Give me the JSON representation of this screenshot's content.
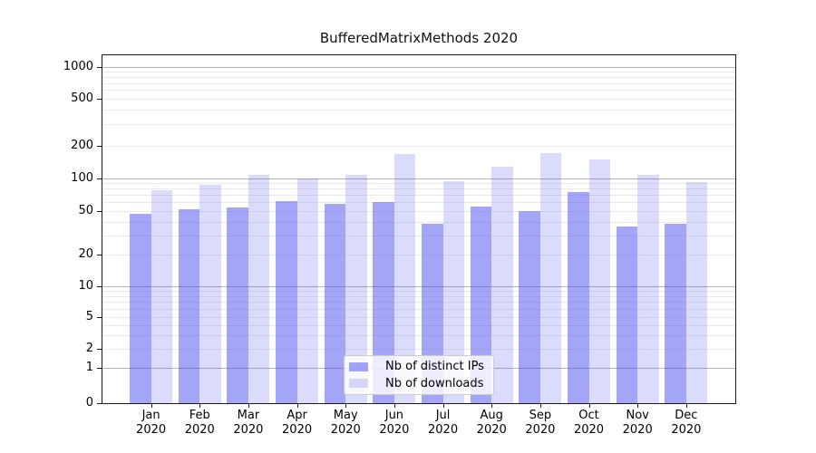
{
  "chart_data": {
    "type": "bar",
    "title": "BufferedMatrixMethods 2020",
    "categories": [
      "Jan",
      "Feb",
      "Mar",
      "Apr",
      "May",
      "Jun",
      "Jul",
      "Aug",
      "Sep",
      "Oct",
      "Nov",
      "Dec"
    ],
    "x_tick_year": "2020",
    "series": [
      {
        "name": "Nb of distinct IPs",
        "color": "rgba(75,75,240,0.50)",
        "values": [
          47,
          52,
          54,
          62,
          58,
          61,
          38,
          55,
          50,
          74,
          36,
          38
        ]
      },
      {
        "name": "Nb of downloads",
        "color": "rgba(75,75,240,0.20)",
        "values": [
          78,
          86,
          106,
          100,
          106,
          166,
          94,
          128,
          170,
          148,
          108,
          92
        ]
      }
    ],
    "xlabel": "",
    "ylabel": "",
    "yscale": "symlog",
    "ylim": [
      0,
      1500
    ],
    "yticks": [
      0,
      1,
      2,
      5,
      10,
      20,
      50,
      100,
      200,
      500,
      1000
    ],
    "grid_major": [
      1,
      10,
      100,
      1000
    ],
    "grid_minor": [
      2,
      3,
      4,
      5,
      6,
      7,
      8,
      9,
      20,
      30,
      40,
      50,
      60,
      70,
      80,
      90,
      200,
      300,
      400,
      500,
      600,
      700,
      800,
      900
    ],
    "grid": true,
    "legend_position": "lower center",
    "colors": {
      "major_grid": "#b3b3b3",
      "minor_grid": "#eaeaea",
      "axis": "#1a1a1a",
      "text": "#000000",
      "background": "#ffffff"
    }
  }
}
